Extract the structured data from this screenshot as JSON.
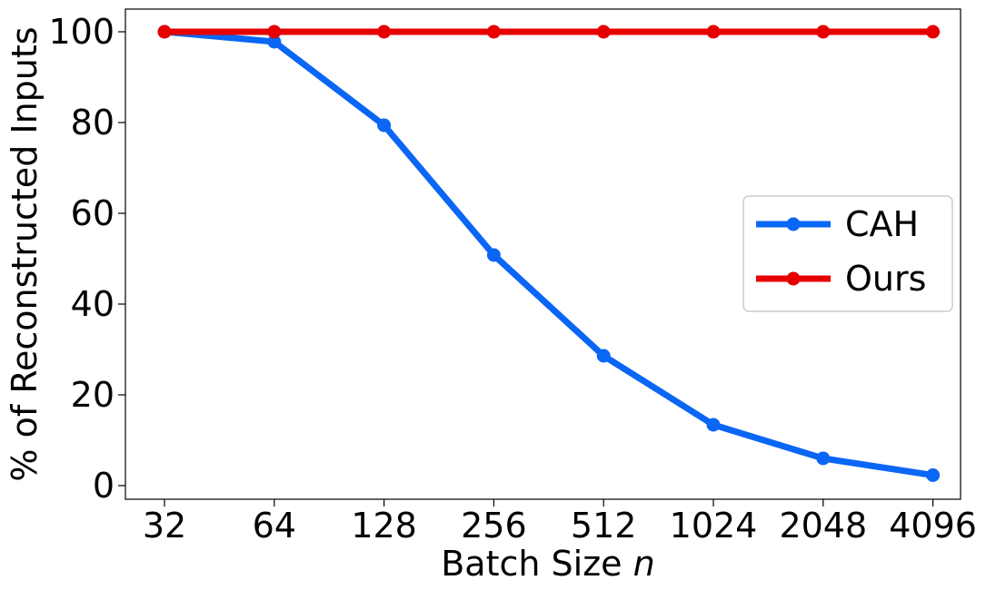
{
  "chart_data": {
    "type": "line",
    "xlabel": "Batch Size",
    "xlabel_var": "n",
    "ylabel": "% of Reconstructed Inputs",
    "categories": [
      "32",
      "64",
      "128",
      "256",
      "512",
      "1024",
      "2048",
      "4096"
    ],
    "x_scale": "log2",
    "ylim": [
      -3,
      105
    ],
    "yticks": [
      0,
      20,
      40,
      60,
      80,
      100
    ],
    "grid": false,
    "legend_position": "center-right",
    "series": [
      {
        "name": "CAH",
        "color": "#0a66f5",
        "values": [
          100,
          97.8,
          79.4,
          50.8,
          28.6,
          13.4,
          6.0,
          2.3
        ]
      },
      {
        "name": "Ours",
        "color": "#e60000",
        "values": [
          100,
          100,
          100,
          100,
          100,
          100,
          100,
          100
        ]
      }
    ]
  }
}
